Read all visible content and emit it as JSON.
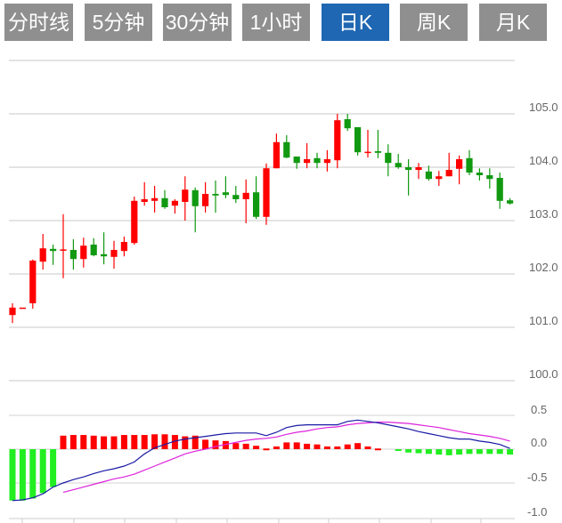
{
  "tabs": [
    {
      "label": "分时线",
      "active": false
    },
    {
      "label": "5分钟",
      "active": false
    },
    {
      "label": "30分钟",
      "active": false
    },
    {
      "label": "1小时",
      "active": false
    },
    {
      "label": "日K",
      "active": true
    },
    {
      "label": "周K",
      "active": false
    },
    {
      "label": "月K",
      "active": false
    }
  ],
  "colors": {
    "up": "#ff0000",
    "down": "#119911",
    "hist_up": "#ff0000",
    "hist_down": "#22ee22",
    "dif": "#1a1aa6",
    "dea": "#dd22dd",
    "active_tab": "#1f67b2",
    "tab": "#8f8f8f"
  },
  "chart_data": [
    {
      "type": "candlestick",
      "title": "",
      "ylim": [
        100.0,
        106.0
      ],
      "y_ticks": [
        "105.0",
        "104.0",
        "103.0",
        "102.0",
        "101.0",
        "100.0"
      ],
      "candles": [
        [
          101.23,
          101.45,
          101.08,
          101.37
        ],
        [
          101.37,
          101.37,
          101.37,
          101.37
        ],
        [
          101.45,
          102.27,
          101.35,
          102.25
        ],
        [
          102.23,
          102.75,
          102.08,
          102.48
        ],
        [
          102.47,
          102.55,
          102.17,
          102.43
        ],
        [
          102.44,
          103.12,
          101.92,
          102.46
        ],
        [
          102.45,
          102.65,
          102.08,
          102.28
        ],
        [
          102.28,
          102.68,
          102.12,
          102.53
        ],
        [
          102.55,
          102.67,
          102.33,
          102.35
        ],
        [
          102.37,
          102.78,
          102.18,
          102.33
        ],
        [
          102.32,
          102.62,
          102.1,
          102.45
        ],
        [
          102.43,
          102.7,
          102.33,
          102.6
        ],
        [
          102.58,
          103.45,
          102.55,
          103.37
        ],
        [
          103.35,
          103.72,
          103.28,
          103.4
        ],
        [
          103.37,
          103.65,
          103.15,
          103.42
        ],
        [
          103.42,
          103.57,
          103.22,
          103.25
        ],
        [
          103.28,
          103.4,
          103.13,
          103.37
        ],
        [
          103.35,
          103.83,
          103.0,
          103.58
        ],
        [
          103.57,
          103.62,
          102.78,
          103.27
        ],
        [
          103.27,
          103.72,
          103.15,
          103.5
        ],
        [
          103.5,
          103.75,
          103.15,
          103.47
        ],
        [
          103.53,
          103.83,
          103.42,
          103.48
        ],
        [
          103.48,
          103.65,
          103.33,
          103.4
        ],
        [
          103.4,
          103.77,
          102.95,
          103.52
        ],
        [
          103.53,
          103.83,
          103.03,
          103.07
        ],
        [
          103.07,
          104.07,
          102.92,
          103.98
        ],
        [
          103.98,
          104.63,
          103.98,
          104.47
        ],
        [
          104.47,
          104.6,
          104.17,
          104.18
        ],
        [
          104.2,
          104.2,
          103.97,
          104.08
        ],
        [
          104.08,
          104.45,
          103.98,
          104.15
        ],
        [
          104.17,
          104.27,
          103.98,
          104.08
        ],
        [
          104.08,
          104.32,
          103.92,
          104.15
        ],
        [
          104.13,
          105.0,
          103.98,
          104.88
        ],
        [
          104.9,
          105.0,
          104.68,
          104.73
        ],
        [
          104.75,
          104.75,
          104.22,
          104.28
        ],
        [
          104.28,
          104.7,
          104.18,
          104.29
        ],
        [
          104.3,
          104.7,
          104.17,
          104.27
        ],
        [
          104.27,
          104.43,
          103.83,
          104.08
        ],
        [
          104.08,
          104.25,
          103.97,
          104.0
        ],
        [
          104.0,
          104.15,
          103.47,
          103.95
        ],
        [
          103.95,
          104.08,
          103.78,
          104.0
        ],
        [
          103.92,
          104.03,
          103.75,
          103.78
        ],
        [
          103.78,
          103.93,
          103.65,
          103.83
        ],
        [
          103.83,
          104.27,
          103.83,
          103.95
        ],
        [
          103.97,
          104.22,
          103.68,
          104.15
        ],
        [
          104.17,
          104.32,
          103.85,
          103.9
        ],
        [
          103.9,
          103.98,
          103.75,
          103.85
        ],
        [
          103.85,
          103.98,
          103.6,
          103.78
        ],
        [
          103.8,
          103.9,
          103.22,
          103.37
        ],
        [
          103.38,
          103.42,
          103.3,
          103.32
        ]
      ],
      "candle_fields": [
        "open",
        "high",
        "low",
        "close"
      ]
    },
    {
      "type": "macd",
      "ylim": [
        -1.0,
        0.5
      ],
      "y_ticks": [
        "0.5",
        "0.0",
        "-0.5",
        "-1.0"
      ],
      "histogram": [
        -0.76,
        -0.76,
        -0.73,
        -0.65,
        -0.56,
        0.2,
        0.21,
        0.21,
        0.2,
        0.19,
        0.19,
        0.21,
        0.21,
        0.21,
        0.22,
        0.22,
        0.21,
        0.19,
        0.2,
        0.14,
        0.13,
        0.12,
        0.09,
        0.08,
        0.05,
        0.01,
        0.04,
        0.1,
        0.1,
        0.08,
        0.07,
        0.04,
        0.04,
        0.07,
        0.09,
        0.04,
        0.01,
        0,
        -0.02,
        -0.05,
        -0.06,
        -0.07,
        -0.08,
        -0.09,
        -0.08,
        -0.07,
        -0.07,
        -0.07,
        -0.07,
        -0.08
      ],
      "dif": [
        -0.76,
        -0.75,
        -0.72,
        -0.66,
        -0.56,
        -0.5,
        -0.45,
        -0.41,
        -0.36,
        -0.32,
        -0.29,
        -0.25,
        -0.19,
        -0.07,
        0.02,
        0.07,
        0.12,
        0.15,
        0.17,
        0.19,
        0.21,
        0.23,
        0.24,
        0.24,
        0.24,
        0.2,
        0.25,
        0.32,
        0.35,
        0.36,
        0.36,
        0.36,
        0.36,
        0.41,
        0.43,
        0.41,
        0.39,
        0.36,
        0.33,
        0.3,
        0.26,
        0.23,
        0.2,
        0.17,
        0.15,
        0.15,
        0.12,
        0.1,
        0.07,
        0.01
      ],
      "dea": [
        null,
        null,
        null,
        null,
        null,
        -0.64,
        -0.6,
        -0.56,
        -0.52,
        -0.48,
        -0.44,
        -0.41,
        -0.37,
        -0.31,
        -0.25,
        -0.19,
        -0.13,
        -0.07,
        -0.03,
        0.0,
        0.04,
        0.07,
        0.1,
        0.13,
        0.15,
        0.16,
        0.18,
        0.22,
        0.25,
        0.27,
        0.3,
        0.32,
        0.33,
        0.36,
        0.38,
        0.39,
        0.4,
        0.4,
        0.39,
        0.38,
        0.36,
        0.34,
        0.32,
        0.29,
        0.26,
        0.23,
        0.21,
        0.19,
        0.16,
        0.12
      ]
    }
  ]
}
